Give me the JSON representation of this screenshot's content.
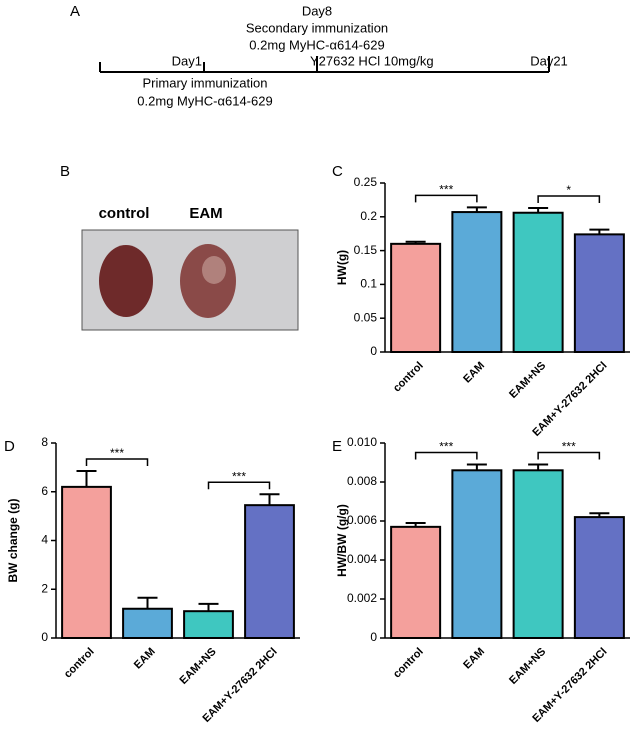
{
  "panel_labels": [
    "A",
    "B",
    "C",
    "D",
    "E"
  ],
  "timeline": {
    "events": [
      {
        "day": "Day1",
        "notes": [
          "Primary immunization",
          "0.2mg MyHC-α614-629"
        ]
      },
      {
        "day": "Day8",
        "notes": [
          "Secondary immunization",
          "0.2mg MyHC-α614-629"
        ]
      },
      {
        "day": "Day21"
      }
    ],
    "treatment": "Y27632 HCl 10mg/kg"
  },
  "photo": {
    "labels": [
      "control",
      "EAM"
    ]
  },
  "chart_data": [
    {
      "type": "bar",
      "ylabel": "HW(g)",
      "categories": [
        "control",
        "EAM",
        "EAM+NS",
        "EAM+Y-27632 2HCl"
      ],
      "values": [
        0.16,
        0.207,
        0.206,
        0.174
      ],
      "errors": [
        0.003,
        0.007,
        0.007,
        0.007
      ],
      "colors": [
        "#f4a09c",
        "#5baad8",
        "#3fc7c0",
        "#6471c4"
      ],
      "ylim": [
        0,
        0.25
      ],
      "yticks": [
        0,
        0.05,
        0.1,
        0.15,
        0.2,
        0.25
      ],
      "annotations": [
        {
          "label": "***",
          "between": [
            0,
            1
          ]
        },
        {
          "label": "*",
          "between": [
            2,
            3
          ]
        }
      ]
    },
    {
      "type": "bar",
      "ylabel": "BW change (g)",
      "categories": [
        "control",
        "EAM",
        "EAM+NS",
        "EAM+Y-27632 2HCl"
      ],
      "values": [
        6.2,
        1.2,
        1.1,
        5.45
      ],
      "errors": [
        0.65,
        0.45,
        0.3,
        0.45
      ],
      "colors": [
        "#f4a09c",
        "#5baad8",
        "#3fc7c0",
        "#6471c4"
      ],
      "ylim": [
        0,
        8
      ],
      "yticks": [
        0,
        2,
        4,
        6,
        8
      ],
      "annotations": [
        {
          "label": "***",
          "between": [
            0,
            1
          ]
        },
        {
          "label": "***",
          "between": [
            2,
            3
          ]
        }
      ]
    },
    {
      "type": "bar",
      "ylabel": "HW/BW (g/g)",
      "categories": [
        "control",
        "EAM",
        "EAM+NS",
        "EAM+Y-27632 2HCl"
      ],
      "values": [
        0.0057,
        0.0086,
        0.0086,
        0.0062
      ],
      "errors": [
        0.0002,
        0.0003,
        0.0003,
        0.0002
      ],
      "colors": [
        "#f4a09c",
        "#5baad8",
        "#3fc7c0",
        "#6471c4"
      ],
      "ylim": [
        0,
        0.01
      ],
      "yticks": [
        0,
        0.002,
        0.004,
        0.006,
        0.008,
        {
          "value": 0.01,
          "label": "0.010"
        }
      ],
      "annotations": [
        {
          "label": "***",
          "between": [
            0,
            1
          ]
        },
        {
          "label": "***",
          "between": [
            2,
            3
          ]
        }
      ]
    }
  ]
}
